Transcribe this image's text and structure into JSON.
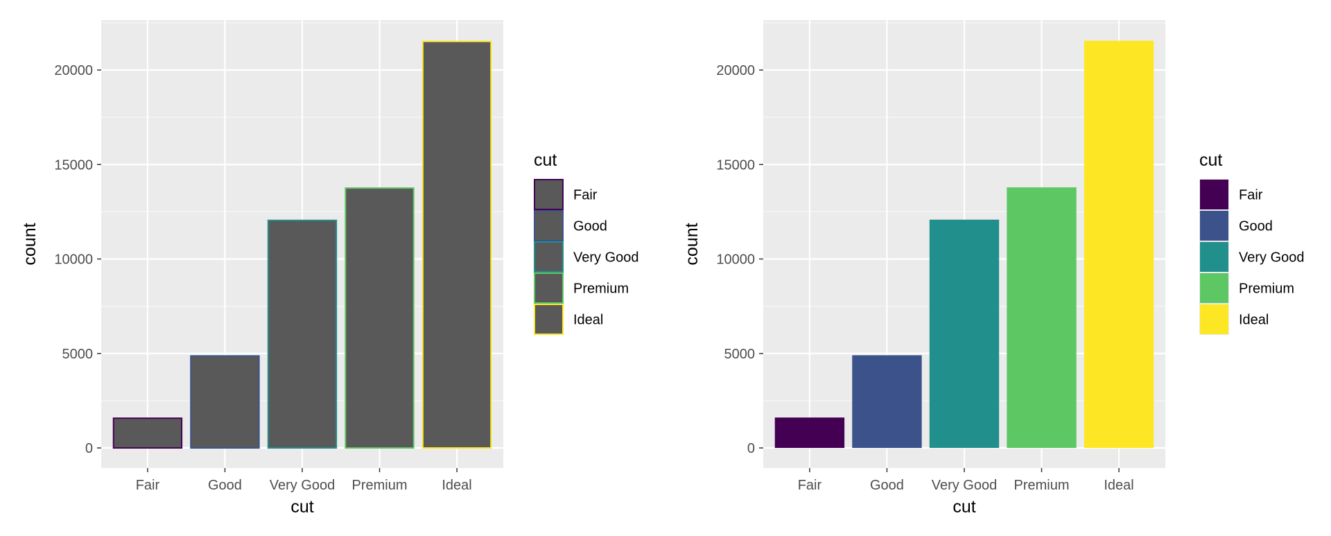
{
  "chart_data": [
    {
      "type": "bar",
      "style": "outline",
      "categories": [
        "Fair",
        "Good",
        "Very Good",
        "Premium",
        "Ideal"
      ],
      "values": [
        1610,
        4906,
        12082,
        13791,
        21551
      ],
      "xlabel": "cut",
      "ylabel": "count",
      "ylim": [
        0,
        22000
      ],
      "yticks": [
        0,
        5000,
        10000,
        15000,
        20000
      ],
      "fill_color": "#595959",
      "outline_colors": [
        "#440154",
        "#3b528b",
        "#21908c",
        "#5dc863",
        "#fde725"
      ],
      "panel_background": "#ebebeb",
      "grid": true,
      "legend": {
        "title": "cut",
        "placement": "right",
        "entries": [
          "Fair",
          "Good",
          "Very Good",
          "Premium",
          "Ideal"
        ]
      }
    },
    {
      "type": "bar",
      "style": "filled",
      "categories": [
        "Fair",
        "Good",
        "Very Good",
        "Premium",
        "Ideal"
      ],
      "values": [
        1610,
        4906,
        12082,
        13791,
        21551
      ],
      "xlabel": "cut",
      "ylabel": "count",
      "ylim": [
        0,
        22000
      ],
      "yticks": [
        0,
        5000,
        10000,
        15000,
        20000
      ],
      "fill_colors": [
        "#440154",
        "#3b528b",
        "#21908c",
        "#5dc863",
        "#fde725"
      ],
      "panel_background": "#ebebeb",
      "grid": true,
      "legend": {
        "title": "cut",
        "placement": "right",
        "entries": [
          "Fair",
          "Good",
          "Very Good",
          "Premium",
          "Ideal"
        ]
      }
    }
  ]
}
